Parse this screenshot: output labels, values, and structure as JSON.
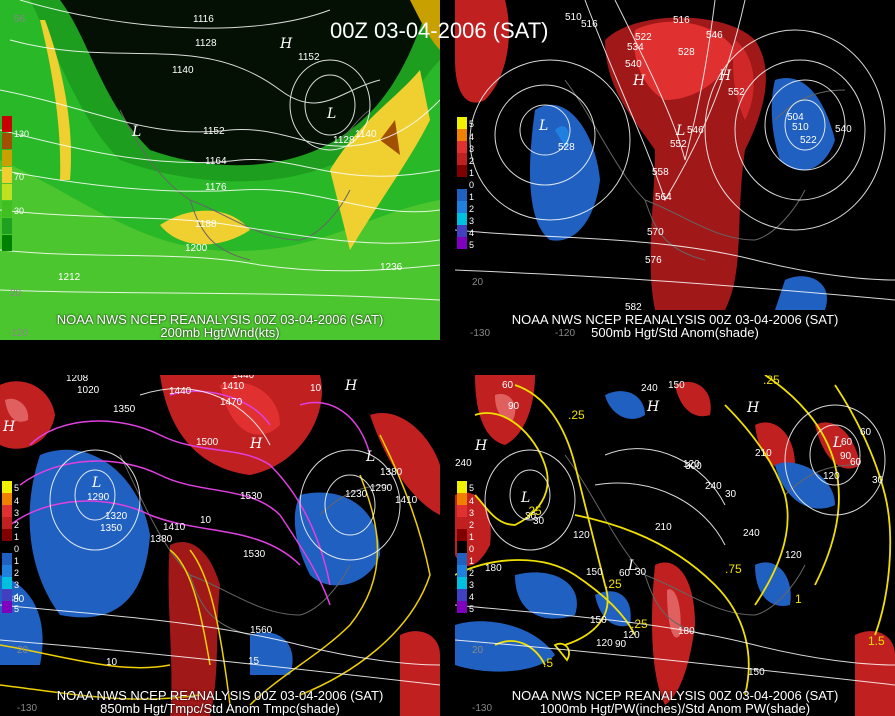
{
  "title": "00Z 03-04-2006 (SAT)",
  "panels": {
    "tl": {
      "caption1": "NOAA NWS NCEP REANALYSIS 00Z 03-04-2006 (SAT)",
      "caption2": "200mb Hgt/Wnd(kts)",
      "legend": [
        {
          "label": "130",
          "color": "#c80000"
        },
        {
          "label": "",
          "color": "#a05000"
        },
        {
          "label": "",
          "color": "#c8a000"
        },
        {
          "label": "70",
          "color": "#f0d030"
        },
        {
          "label": "",
          "color": "#c0e020"
        },
        {
          "label": "30",
          "color": "#40c020"
        },
        {
          "label": "",
          "color": "#20a020"
        },
        {
          "label": "",
          "color": "#008000"
        }
      ],
      "contour_labels": [
        "1116",
        "1128",
        "1140",
        "1152",
        "1164",
        "1176",
        "1188",
        "1200",
        "1212",
        "1236",
        "1152",
        "1128",
        "1140"
      ],
      "lat_labels": [
        "56",
        "20",
        "-120"
      ],
      "centers": [
        "L",
        "L",
        "H"
      ]
    },
    "tr": {
      "caption1": "NOAA NWS NCEP REANALYSIS 00Z 03-04-2006 (SAT)",
      "caption2": "500mb Hgt/Std Anom(shade)",
      "legend": [
        {
          "label": "5",
          "color": "#f0f000"
        },
        {
          "label": "4",
          "color": "#f08000"
        },
        {
          "label": "3",
          "color": "#e03030"
        },
        {
          "label": "2",
          "color": "#c02020"
        },
        {
          "label": "1",
          "color": "#800000"
        },
        {
          "label": "0",
          "color": "#000000"
        },
        {
          "label": "1",
          "color": "#2060c0"
        },
        {
          "label": "2",
          "color": "#2080e0"
        },
        {
          "label": "3",
          "color": "#00c0e0"
        },
        {
          "label": "4",
          "color": "#4040c0"
        },
        {
          "label": "5",
          "color": "#8000c0"
        }
      ],
      "contour_labels": [
        "510",
        "516",
        "522",
        "528",
        "534",
        "540",
        "546",
        "552",
        "558",
        "564",
        "570",
        "576",
        "582",
        "522",
        "504",
        "510",
        "516",
        "522",
        "528",
        "534",
        "540",
        "546",
        "552"
      ],
      "lat_labels": [
        "20",
        "-130",
        "-120"
      ],
      "centers": [
        "L",
        "L",
        "H",
        "H"
      ]
    },
    "bl": {
      "caption1": "NOAA NWS NCEP REANALYSIS 00Z 03-04-2006 (SAT)",
      "caption2": "850mb Hgt/Tmpc/Std Anom Tmpc(shade)",
      "legend": [
        {
          "label": "5",
          "color": "#f0f000"
        },
        {
          "label": "4",
          "color": "#f08000"
        },
        {
          "label": "3",
          "color": "#e03030"
        },
        {
          "label": "2",
          "color": "#c02020"
        },
        {
          "label": "1",
          "color": "#800000"
        },
        {
          "label": "0",
          "color": "#000000"
        },
        {
          "label": "1",
          "color": "#2060c0"
        },
        {
          "label": "2",
          "color": "#2080e0"
        },
        {
          "label": "3",
          "color": "#00c0e0"
        },
        {
          "label": "4",
          "color": "#4040c0"
        },
        {
          "label": "5",
          "color": "#8000c0"
        }
      ],
      "contour_labels": [
        "1260",
        "1320",
        "1350",
        "1380",
        "1410",
        "1440",
        "1470",
        "1500",
        "1530",
        "1560",
        "1230",
        "1290",
        "1350",
        "1410",
        "1290",
        "1320",
        "1350",
        "1380",
        "10",
        "10",
        "15",
        "20",
        "-10"
      ],
      "lat_labels": [
        "20",
        "-130"
      ],
      "centers": [
        "L",
        "L",
        "H",
        "H",
        "H"
      ]
    },
    "br": {
      "caption1": "NOAA NWS NCEP REANALYSIS 00Z 03-04-2006 (SAT)",
      "caption2": "1000mb Hgt/PW(inches)/Std Anom PW(shade)",
      "legend": [
        {
          "label": "5",
          "color": "#f0f000"
        },
        {
          "label": "4",
          "color": "#f08000"
        },
        {
          "label": "3",
          "color": "#e03030"
        },
        {
          "label": "2",
          "color": "#c02020"
        },
        {
          "label": "1",
          "color": "#800000"
        },
        {
          "label": "0",
          "color": "#000000"
        },
        {
          "label": "1",
          "color": "#2060c0"
        },
        {
          "label": "2",
          "color": "#2080e0"
        },
        {
          "label": "3",
          "color": "#00c0e0"
        },
        {
          "label": "4",
          "color": "#4040c0"
        },
        {
          "label": "5",
          "color": "#8000c0"
        }
      ],
      "contour_labels": [
        "240",
        "180",
        "150",
        "120",
        "90",
        "60",
        "30",
        "210",
        "240",
        "300",
        "60",
        "90",
        "120",
        "180",
        "150",
        ".25",
        ".25",
        ".5",
        "1",
        "1.5",
        ".75",
        "60",
        "90",
        "30"
      ],
      "lat_labels": [
        "20",
        "-130"
      ],
      "centers": [
        "L",
        "L",
        "L",
        "H",
        "H",
        "H"
      ]
    }
  }
}
